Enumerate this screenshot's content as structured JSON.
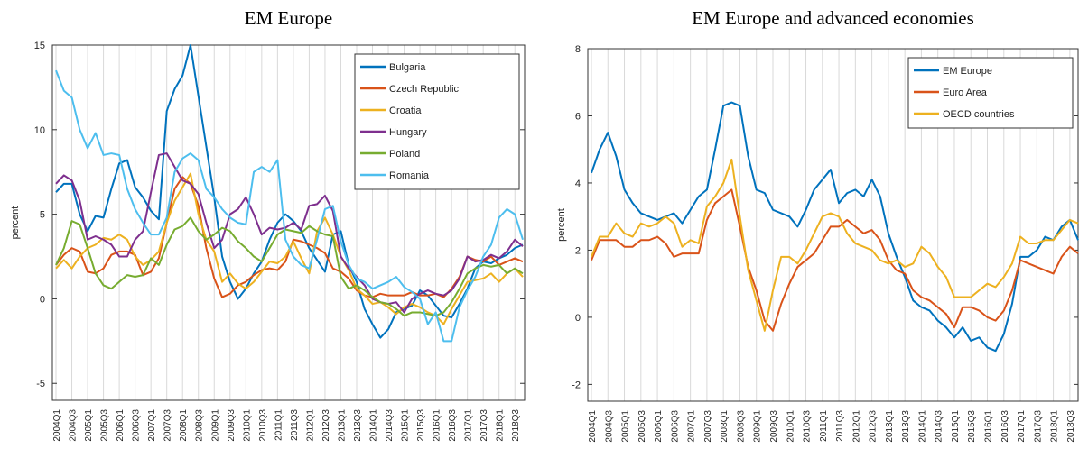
{
  "chart_data": [
    {
      "type": "line",
      "title": "EM Europe",
      "y_label": "percent",
      "categories": [
        "2004Q1",
        null,
        "2004Q3",
        null,
        "2005Q1",
        null,
        "2005Q3",
        null,
        "2006Q1",
        null,
        "2006Q3",
        null,
        "2007Q1",
        null,
        "2007Q3",
        null,
        "2008Q1",
        null,
        "2008Q3",
        null,
        "2009Q1",
        null,
        "2009Q3",
        null,
        "2010Q1",
        null,
        "2010Q3",
        null,
        "2011Q1",
        null,
        "2011Q3",
        null,
        "2012Q1",
        null,
        "2012Q3",
        null,
        "2013Q1",
        null,
        "2013Q3",
        null,
        "2014Q1",
        null,
        "2014Q3",
        null,
        "2015Q1",
        null,
        "2015Q3",
        null,
        "2016Q1",
        null,
        "2016Q3",
        null,
        "2017Q1",
        null,
        "2017Q3",
        null,
        "2018Q1",
        null,
        "2018Q3",
        null
      ],
      "ylim": [
        -6,
        15
      ],
      "yticks": [
        -5,
        0,
        5,
        10,
        15
      ],
      "legend": "upper right",
      "grid": true,
      "series": [
        {
          "name": "Bulgaria",
          "color": "#0072BD",
          "values": [
            6.3,
            6.8,
            6.8,
            5,
            4,
            4.9,
            4.8,
            6.5,
            8.0,
            8.2,
            6.6,
            6,
            5.2,
            4.7,
            11.1,
            12.4,
            13.2,
            15.0,
            12.0,
            9.0,
            6.0,
            2.5,
            1.0,
            0.0,
            0.6,
            1.5,
            2.2,
            3.5,
            4.5,
            5.0,
            4.6,
            4.0,
            3.0,
            2.3,
            1.6,
            3.8,
            4.0,
            2.0,
            1.0,
            -0.6,
            -1.5,
            -2.3,
            -1.8,
            -0.8,
            -0.6,
            -0.4,
            0.5,
            0.2,
            -0.4,
            -1.0,
            -1.1,
            -0.3,
            0.6,
            1.8,
            2.2,
            2.1,
            2.4,
            2.6,
            3.0,
            3.2
          ]
        },
        {
          "name": "Czech Republic",
          "color": "#D95319",
          "values": [
            2.0,
            2.6,
            3.0,
            2.8,
            1.6,
            1.5,
            1.8,
            2.6,
            2.8,
            2.8,
            2.6,
            1.4,
            1.6,
            2.4,
            4.5,
            6.5,
            7.2,
            6.8,
            5.5,
            3.0,
            1.2,
            0.1,
            0.3,
            0.8,
            1.0,
            1.4,
            1.7,
            1.8,
            1.7,
            2.2,
            3.5,
            3.4,
            3.2,
            3.0,
            2.7,
            1.8,
            1.6,
            1.2,
            0.5,
            0.2,
            0.1,
            0.3,
            0.2,
            0.2,
            0.2,
            0.4,
            0.2,
            0.2,
            0.3,
            0.1,
            0.6,
            1.3,
            2.5,
            2.3,
            2.2,
            2.5,
            2.0,
            2.2,
            2.4,
            2.2
          ]
        },
        {
          "name": "Croatia",
          "color": "#EDB120",
          "values": [
            1.8,
            2.3,
            1.8,
            2.5,
            3.0,
            3.2,
            3.6,
            3.5,
            3.8,
            3.5,
            2.5,
            2.0,
            2.3,
            2.8,
            4.5,
            5.8,
            6.6,
            7.4,
            5.0,
            3.5,
            2.8,
            1.0,
            1.5,
            0.9,
            0.6,
            1.0,
            1.6,
            2.2,
            2.1,
            2.5,
            3.4,
            2.4,
            1.5,
            4.0,
            4.8,
            3.8,
            2.5,
            1.7,
            0.6,
            0.2,
            -0.3,
            -0.2,
            -0.5,
            -0.9,
            -0.5,
            -0.3,
            -0.5,
            -0.8,
            -1.0,
            -1.5,
            -0.6,
            0.2,
            1.0,
            1.1,
            1.2,
            1.5,
            1.0,
            1.5,
            1.8,
            1.3
          ]
        },
        {
          "name": "Hungary",
          "color": "#7E2F8E",
          "values": [
            6.8,
            7.3,
            7.0,
            5.8,
            3.5,
            3.7,
            3.5,
            3.2,
            2.5,
            2.5,
            3.5,
            4.0,
            6.3,
            8.5,
            8.6,
            7.8,
            7.0,
            6.8,
            6.2,
            4.5,
            3.0,
            3.5,
            5.0,
            5.3,
            6.0,
            5.0,
            3.8,
            4.2,
            4.1,
            4.2,
            4.5,
            4.1,
            5.5,
            5.6,
            6.1,
            5.2,
            2.5,
            1.8,
            1.3,
            0.8,
            0.0,
            -0.2,
            -0.3,
            -0.2,
            -0.8,
            0.0,
            0.3,
            0.5,
            0.3,
            0.2,
            0.5,
            1.2,
            2.5,
            2.2,
            2.3,
            2.6,
            2.4,
            2.8,
            3.5,
            3.1
          ]
        },
        {
          "name": "Poland",
          "color": "#77AC30",
          "values": [
            2.0,
            3.0,
            4.6,
            4.4,
            3.0,
            1.5,
            0.8,
            0.6,
            1.0,
            1.4,
            1.3,
            1.4,
            2.4,
            2.0,
            3.2,
            4.1,
            4.3,
            4.8,
            4.0,
            3.5,
            3.8,
            4.2,
            4.0,
            3.4,
            3.0,
            2.5,
            2.2,
            3.0,
            3.8,
            4.1,
            4.0,
            3.9,
            4.3,
            4.0,
            3.8,
            3.7,
            1.3,
            0.6,
            0.8,
            0.5,
            0.1,
            -0.2,
            -0.3,
            -0.6,
            -1.0,
            -0.8,
            -0.8,
            -0.9,
            -1.0,
            -0.8,
            -0.2,
            0.6,
            1.5,
            1.8,
            2.0,
            1.9,
            2.0,
            1.5,
            1.8,
            1.5
          ]
        },
        {
          "name": "Romania",
          "color": "#4DBEEE",
          "values": [
            13.5,
            12.3,
            11.9,
            10.0,
            8.9,
            9.8,
            8.5,
            8.6,
            8.5,
            6.5,
            5.3,
            4.5,
            3.8,
            3.8,
            4.8,
            7.5,
            8.3,
            8.6,
            8.2,
            6.5,
            6.0,
            5.3,
            4.8,
            4.5,
            4.4,
            7.5,
            7.8,
            7.5,
            8.2,
            3.5,
            2.5,
            2.0,
            1.8,
            3.5,
            5.3,
            5.5,
            3.4,
            2.0,
            1.2,
            1.0,
            0.6,
            0.8,
            1.0,
            1.3,
            0.7,
            0.4,
            0.0,
            -1.5,
            -0.8,
            -2.5,
            -2.5,
            -0.5,
            0.5,
            1.3,
            2.5,
            3.2,
            4.8,
            5.3,
            5.0,
            3.5
          ]
        }
      ]
    },
    {
      "type": "line",
      "title": "EM Europe and advanced economies",
      "y_label": "percent",
      "categories": [
        "2004Q1",
        null,
        "2004Q3",
        null,
        "2005Q1",
        null,
        "2005Q3",
        null,
        "2006Q1",
        null,
        "2006Q3",
        null,
        "2007Q1",
        null,
        "2007Q3",
        null,
        "2008Q1",
        null,
        "2008Q3",
        null,
        "2009Q1",
        null,
        "2009Q3",
        null,
        "2010Q1",
        null,
        "2010Q3",
        null,
        "2011Q1",
        null,
        "2011Q3",
        null,
        "2012Q1",
        null,
        "2012Q3",
        null,
        "2013Q1",
        null,
        "2013Q3",
        null,
        "2014Q1",
        null,
        "2014Q3",
        null,
        "2015Q1",
        null,
        "2015Q3",
        null,
        "2016Q1",
        null,
        "2016Q3",
        null,
        "2017Q1",
        null,
        "2017Q3",
        null,
        "2018Q1",
        null,
        "2018Q3",
        null
      ],
      "ylim": [
        -2.5,
        8
      ],
      "yticks": [
        -2,
        0,
        2,
        4,
        6,
        8
      ],
      "legend": "upper right",
      "grid": true,
      "series": [
        {
          "name": "EM Europe",
          "color": "#0072BD",
          "values": [
            4.3,
            5.0,
            5.5,
            4.8,
            3.8,
            3.4,
            3.1,
            3.0,
            2.9,
            3.0,
            3.1,
            2.8,
            3.2,
            3.6,
            3.8,
            5.0,
            6.3,
            6.4,
            6.3,
            4.8,
            3.8,
            3.7,
            3.2,
            3.1,
            3.0,
            2.7,
            3.2,
            3.8,
            4.1,
            4.4,
            3.4,
            3.7,
            3.8,
            3.6,
            4.1,
            3.6,
            2.5,
            1.8,
            1.2,
            0.5,
            0.3,
            0.2,
            -0.1,
            -0.3,
            -0.6,
            -0.3,
            -0.7,
            -0.6,
            -0.9,
            -1.0,
            -0.5,
            0.4,
            1.8,
            1.8,
            2.0,
            2.4,
            2.3,
            2.7,
            2.9,
            2.3
          ]
        },
        {
          "name": "Euro Area",
          "color": "#D95319",
          "values": [
            1.7,
            2.3,
            2.3,
            2.3,
            2.1,
            2.1,
            2.3,
            2.3,
            2.4,
            2.2,
            1.8,
            1.9,
            1.9,
            1.9,
            2.9,
            3.4,
            3.6,
            3.8,
            2.7,
            1.5,
            0.8,
            -0.1,
            -0.4,
            0.4,
            1.0,
            1.5,
            1.7,
            1.9,
            2.3,
            2.7,
            2.7,
            2.9,
            2.7,
            2.5,
            2.6,
            2.3,
            1.7,
            1.4,
            1.3,
            0.8,
            0.6,
            0.5,
            0.3,
            0.1,
            -0.3,
            0.3,
            0.3,
            0.2,
            0.0,
            -0.1,
            0.2,
            0.8,
            1.7,
            1.6,
            1.5,
            1.4,
            1.3,
            1.8,
            2.1,
            1.9
          ]
        },
        {
          "name": "OECD countries",
          "color": "#EDB120",
          "values": [
            1.8,
            2.4,
            2.4,
            2.8,
            2.5,
            2.4,
            2.8,
            2.7,
            2.8,
            3.0,
            2.8,
            2.1,
            2.3,
            2.2,
            3.3,
            3.6,
            4.0,
            4.7,
            3.0,
            1.4,
            0.5,
            -0.4,
            0.8,
            1.8,
            1.8,
            1.6,
            2.0,
            2.5,
            3.0,
            3.1,
            3.0,
            2.5,
            2.2,
            2.1,
            2.0,
            1.7,
            1.6,
            1.7,
            1.5,
            1.6,
            2.1,
            1.9,
            1.5,
            1.2,
            0.6,
            0.6,
            0.6,
            0.8,
            1.0,
            0.9,
            1.2,
            1.6,
            2.4,
            2.2,
            2.2,
            2.3,
            2.3,
            2.6,
            2.9,
            2.8
          ]
        }
      ]
    }
  ]
}
